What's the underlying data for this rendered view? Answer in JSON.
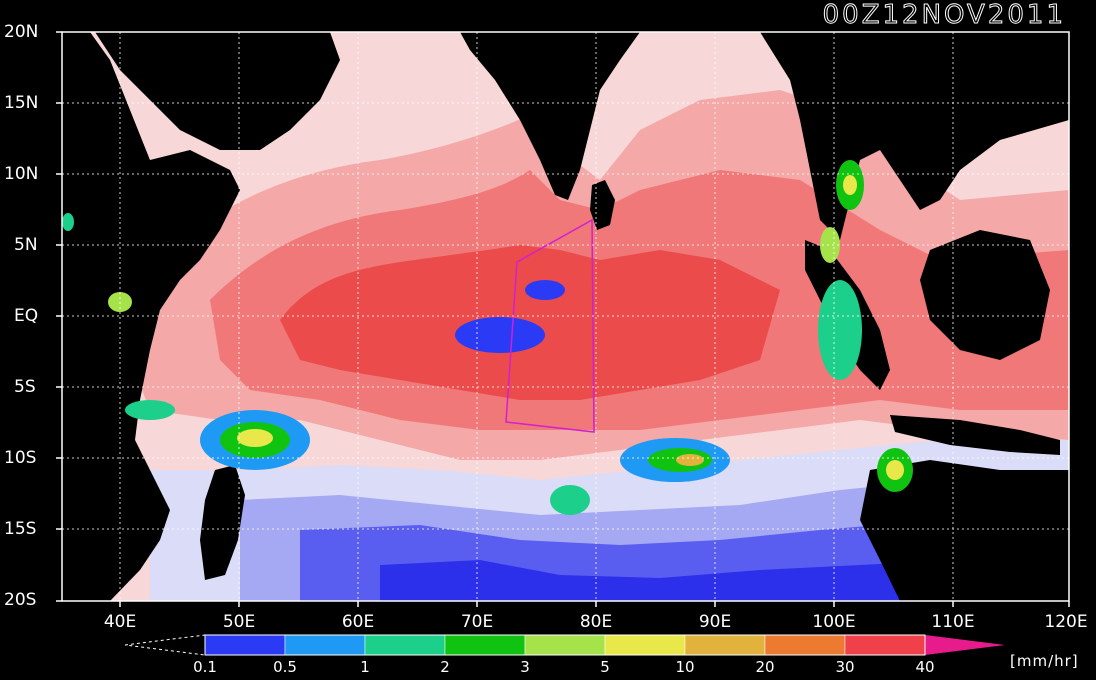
{
  "title": "00Z12NOV2011",
  "lat_labels": [
    "20N",
    "15N",
    "10N",
    "5N",
    "EQ",
    "5S",
    "10S",
    "15S",
    "20S"
  ],
  "lon_labels": [
    "40E",
    "50E",
    "60E",
    "70E",
    "80E",
    "90E",
    "100E",
    "110E",
    "120E"
  ],
  "colorbar": {
    "labels": [
      "0.1",
      "0.5",
      "1",
      "2",
      "3",
      "5",
      "10",
      "20",
      "30",
      "40"
    ],
    "colors": [
      "#2b3bf5",
      "#1e9af5",
      "#1ccf8a",
      "#11c311",
      "#a6e34a",
      "#e8e84a",
      "#e2b33c",
      "#ec7a30",
      "#f0404a",
      "#e81b8c"
    ],
    "unit": "[mm/hr]"
  },
  "palette": {
    "land": "#000000",
    "rain_very_light": "#f7d7d7",
    "rain_light": "#f4a8a8",
    "rain_moderate": "#f07878",
    "rain_heavy": "#ec4b4b",
    "dry_light": "#dadcf8",
    "dry_mid": "#a5a8f2",
    "dry_low": "#5a5ef0",
    "dry_lowest": "#2c30ea",
    "box": "#d020d0"
  }
}
